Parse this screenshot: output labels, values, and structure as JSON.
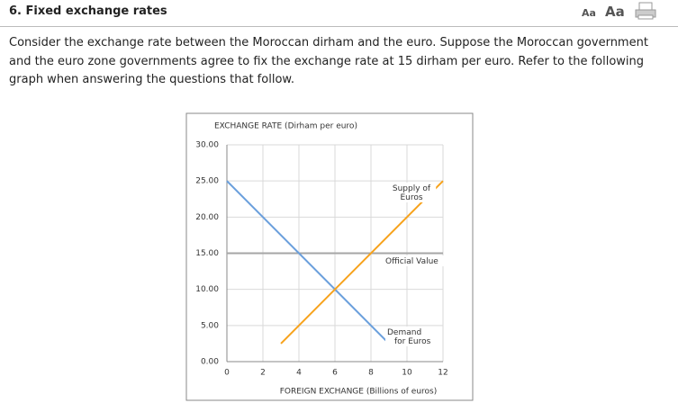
{
  "header": {
    "title": "6. Fixed exchange rates",
    "font_small": "Aa",
    "font_large": "Aa"
  },
  "paragraph": "Consider the exchange rate between the Moroccan dirham and the euro. Suppose the Moroccan government and the euro zone governments agree to fix the exchange rate at 15 dirham per euro. Refer to the following graph when answering the questions that follow.",
  "chart_data": {
    "type": "line",
    "y_label": "EXCHANGE RATE (Dirham per euro)",
    "x_label": "FOREIGN EXCHANGE (Billions of euros)",
    "xlim": [
      0,
      12
    ],
    "ylim": [
      0,
      30
    ],
    "xticks": [
      0,
      2,
      4,
      6,
      8,
      10,
      12
    ],
    "yticks": [
      {
        "value": 0,
        "label": "0.00"
      },
      {
        "value": 5,
        "label": "5.00"
      },
      {
        "value": 10,
        "label": "10.00"
      },
      {
        "value": 15,
        "label": "15.00"
      },
      {
        "value": 20,
        "label": "20.00"
      },
      {
        "value": 25,
        "label": "25.00"
      },
      {
        "value": 30,
        "label": "30.00"
      }
    ],
    "grid": true,
    "series": [
      {
        "name": "Official Value",
        "color": "#a6a6a6",
        "x": [
          0,
          12
        ],
        "values": [
          15,
          15
        ]
      },
      {
        "name": "Demand\nfor Euros",
        "color": "#6a9fdc",
        "x": [
          0,
          9
        ],
        "values": [
          25,
          2.5
        ]
      },
      {
        "name": "Supply of\nEuros",
        "color": "#f7a21b",
        "x": [
          3,
          12
        ],
        "values": [
          2.5,
          25
        ]
      }
    ]
  }
}
